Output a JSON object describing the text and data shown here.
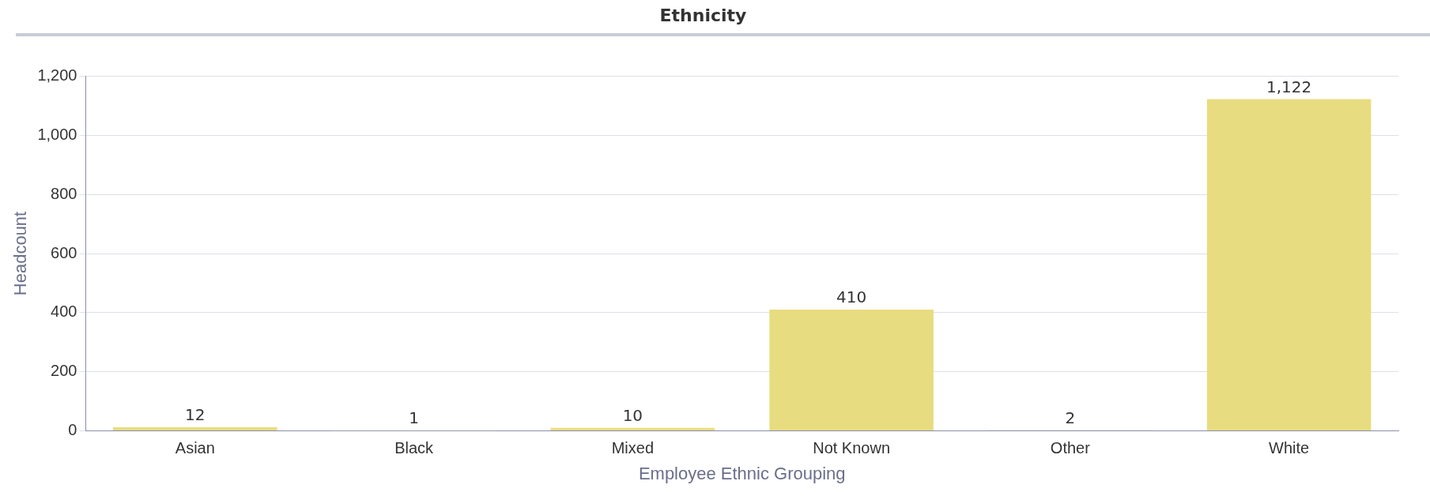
{
  "chart_data": {
    "type": "bar",
    "title": "Ethnicity",
    "xlabel": "Employee Ethnic Grouping",
    "ylabel": "Headcount",
    "categories": [
      "Asian",
      "Black",
      "Mixed",
      "Not Known",
      "Other",
      "White"
    ],
    "values": [
      12,
      1,
      10,
      410,
      2,
      1122
    ],
    "value_labels": [
      "12",
      "1",
      "10",
      "410",
      "2",
      "1,122"
    ],
    "color": "#e8dc80",
    "ylim": [
      0,
      1200
    ],
    "yticks": [
      0,
      200,
      400,
      600,
      800,
      {
        "value": 1000,
        "label": "1,000"
      },
      {
        "value": 1200,
        "label": "1,200"
      }
    ],
    "grid": "y",
    "legend": false
  }
}
